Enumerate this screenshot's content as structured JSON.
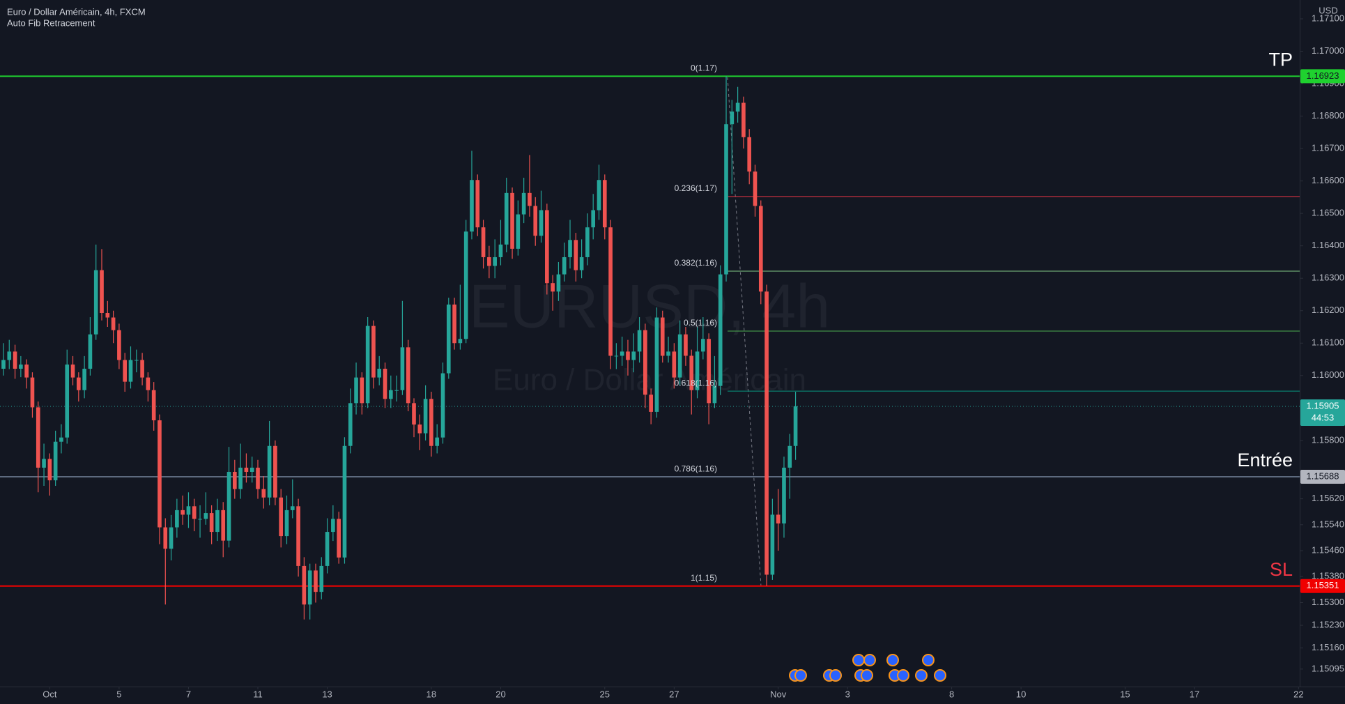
{
  "chart_data": {
    "type": "candlestick",
    "title": "Euro / Dollar Américain, 4h, FXCM",
    "subtitle": "Auto Fib Retracement",
    "currency": "USD",
    "watermark": {
      "symbol": "EURUSD, 4h",
      "name": "Euro / Dollar Américain"
    },
    "up_color": "#26a69a",
    "down_color": "#ef5350",
    "ylim": [
      1.15041,
      1.17158
    ],
    "xlim": [
      -8.6,
      216.2
    ],
    "yticks": [
      {
        "value": 1.171,
        "label": "1.17100"
      },
      {
        "value": 1.17,
        "label": "1.17000"
      },
      {
        "value": 1.169,
        "label": "1.16900"
      },
      {
        "value": 1.168,
        "label": "1.16800"
      },
      {
        "value": 1.167,
        "label": "1.16700"
      },
      {
        "value": 1.166,
        "label": "1.16600"
      },
      {
        "value": 1.165,
        "label": "1.16500"
      },
      {
        "value": 1.164,
        "label": "1.16400"
      },
      {
        "value": 1.163,
        "label": "1.16300"
      },
      {
        "value": 1.162,
        "label": "1.16200"
      },
      {
        "value": 1.161,
        "label": "1.16100"
      },
      {
        "value": 1.16,
        "label": "1.16000"
      },
      {
        "value": 1.158,
        "label": "1.15800"
      },
      {
        "value": 1.1562,
        "label": "1.15620"
      },
      {
        "value": 1.1554,
        "label": "1.15540"
      },
      {
        "value": 1.1546,
        "label": "1.15460"
      },
      {
        "value": 1.1538,
        "label": "1.15380"
      },
      {
        "value": 1.153,
        "label": "1.15300"
      },
      {
        "value": 1.1523,
        "label": "1.15230"
      },
      {
        "value": 1.1516,
        "label": "1.15160"
      },
      {
        "value": 1.15095,
        "label": "1.15095"
      }
    ],
    "xticks": [
      {
        "value": 0,
        "label": "Oct"
      },
      {
        "value": 12,
        "label": "5"
      },
      {
        "value": 24,
        "label": "7"
      },
      {
        "value": 36,
        "label": "11"
      },
      {
        "value": 48,
        "label": "13"
      },
      {
        "value": 66,
        "label": "18"
      },
      {
        "value": 78,
        "label": "20"
      },
      {
        "value": 96,
        "label": "25"
      },
      {
        "value": 108,
        "label": "27"
      },
      {
        "value": 126,
        "label": "Nov"
      },
      {
        "value": 138,
        "label": "3"
      },
      {
        "value": 156,
        "label": "8"
      },
      {
        "value": 168,
        "label": "10"
      },
      {
        "value": 186,
        "label": "15"
      },
      {
        "value": 198,
        "label": "17"
      },
      {
        "value": 216,
        "label": "22"
      }
    ],
    "levels": [
      {
        "name": "TP",
        "value": 1.16923,
        "color": "#1fd12f",
        "tag_color": "#1fd12f",
        "tag_text": "#131722",
        "name_color": "#ffffff"
      },
      {
        "name": "Entrée",
        "value": 1.15688,
        "color": "#5d6a7e",
        "tag_color": "#b2b5be",
        "tag_text": "#131722",
        "name_color": "#ffffff"
      },
      {
        "name": "SL",
        "value": 1.15351,
        "color": "#f00000",
        "tag_color": "#f00000",
        "tag_text": "#ffffff",
        "name_color": "#f23645"
      }
    ],
    "current_price": 1.15905,
    "countdown": "44:53",
    "fib_levels": [
      {
        "label": "0(1.17)",
        "value": 1.16923,
        "color": "#787b86"
      },
      {
        "label": "0.236(1.17)",
        "value": 1.16552,
        "color": "#f23645"
      },
      {
        "label": "0.382(1.16)",
        "value": 1.16322,
        "color": "#81c784"
      },
      {
        "label": "0.5(1.16)",
        "value": 1.16137,
        "color": "#4caf50"
      },
      {
        "label": "0.618(1.16)",
        "value": 1.15952,
        "color": "#089981"
      },
      {
        "label": "0.786(1.16)",
        "value": 1.15687,
        "color": "#64b5f6"
      },
      {
        "label": "1(1.15)",
        "value": 1.15351,
        "color": "#787b86"
      }
    ],
    "x": [
      -8,
      -7,
      -6,
      -5,
      -4,
      -3,
      -2,
      -1,
      0,
      1,
      2,
      3,
      4,
      5,
      6,
      7,
      8,
      9,
      10,
      11,
      12,
      13,
      14,
      15,
      16,
      17,
      18,
      19,
      20,
      21,
      22,
      23,
      24,
      25,
      26,
      27,
      28,
      29,
      30,
      31,
      32,
      33,
      34,
      35,
      36,
      37,
      38,
      39,
      40,
      41,
      42,
      43,
      44,
      45,
      46,
      47,
      48,
      49,
      50,
      51,
      52,
      53,
      54,
      55,
      56,
      57,
      58,
      59,
      60,
      61,
      62,
      63,
      64,
      65,
      66,
      67,
      68,
      69,
      70,
      71,
      72,
      73,
      74,
      75,
      76,
      77,
      78,
      79,
      80,
      81,
      82,
      83,
      84,
      85,
      86,
      87,
      88,
      89,
      90,
      91,
      92,
      93,
      94,
      95,
      96,
      97,
      98,
      99,
      100,
      101,
      102,
      103,
      104,
      105,
      106,
      107,
      108,
      109,
      110,
      111,
      112,
      113,
      114,
      115,
      116,
      117,
      118,
      119,
      120,
      121,
      122,
      123,
      124,
      125,
      126,
      127,
      128,
      129
    ],
    "ohlc": [
      [
        1.16021,
        1.161,
        1.16,
        1.16048
      ],
      [
        1.16048,
        1.1611,
        1.1602,
        1.16074
      ],
      [
        1.16074,
        1.16095,
        1.1599,
        1.16021
      ],
      [
        1.16021,
        1.1606,
        1.15995,
        1.16034
      ],
      [
        1.16034,
        1.1605,
        1.1596,
        1.15994
      ],
      [
        1.15994,
        1.1601,
        1.1587,
        1.15902
      ],
      [
        1.15902,
        1.1592,
        1.1564,
        1.15716
      ],
      [
        1.15716,
        1.1579,
        1.1566,
        1.15743
      ],
      [
        1.15743,
        1.1576,
        1.1563,
        1.15677
      ],
      [
        1.15677,
        1.1583,
        1.1566,
        1.15796
      ],
      [
        1.15796,
        1.1585,
        1.1576,
        1.15809
      ],
      [
        1.15809,
        1.1608,
        1.1579,
        1.16034
      ],
      [
        1.16034,
        1.1606,
        1.1597,
        1.15994
      ],
      [
        1.15994,
        1.1601,
        1.1592,
        1.15955
      ],
      [
        1.15955,
        1.1606,
        1.1593,
        1.16021
      ],
      [
        1.16021,
        1.1618,
        1.16,
        1.16127
      ],
      [
        1.16127,
        1.16404,
        1.1611,
        1.16325
      ],
      [
        1.16325,
        1.1639,
        1.1617,
        1.16193
      ],
      [
        1.16193,
        1.1623,
        1.1615,
        1.16179
      ],
      [
        1.16179,
        1.162,
        1.161,
        1.1614
      ],
      [
        1.1614,
        1.1616,
        1.1602,
        1.16048
      ],
      [
        1.16048,
        1.1607,
        1.1595,
        1.15981
      ],
      [
        1.15981,
        1.1609,
        1.1596,
        1.16048
      ],
      [
        1.16048,
        1.1608,
        1.1601,
        1.16048
      ],
      [
        1.16048,
        1.1607,
        1.1597,
        1.15994
      ],
      [
        1.15994,
        1.1601,
        1.1592,
        1.15955
      ],
      [
        1.15955,
        1.1598,
        1.1583,
        1.15862
      ],
      [
        1.15862,
        1.1588,
        1.1548,
        1.15532
      ],
      [
        1.15532,
        1.1556,
        1.15294,
        1.15466
      ],
      [
        1.15466,
        1.1557,
        1.1543,
        1.15532
      ],
      [
        1.15532,
        1.1562,
        1.155,
        1.15585
      ],
      [
        1.15585,
        1.1563,
        1.1554,
        1.15571
      ],
      [
        1.15571,
        1.1564,
        1.1553,
        1.15597
      ],
      [
        1.15597,
        1.1562,
        1.1552,
        1.15558
      ],
      [
        1.15558,
        1.156,
        1.155,
        1.15558
      ],
      [
        1.15558,
        1.1564,
        1.1554,
        1.15576
      ],
      [
        1.15576,
        1.156,
        1.1548,
        1.15518
      ],
      [
        1.15518,
        1.1562,
        1.1549,
        1.15585
      ],
      [
        1.15585,
        1.1561,
        1.1544,
        1.15491
      ],
      [
        1.15491,
        1.1578,
        1.1547,
        1.15703
      ],
      [
        1.15703,
        1.1574,
        1.1562,
        1.1565
      ],
      [
        1.1565,
        1.1579,
        1.1562,
        1.15716
      ],
      [
        1.15716,
        1.1576,
        1.1567,
        1.15703
      ],
      [
        1.15703,
        1.1575,
        1.1567,
        1.15716
      ],
      [
        1.15716,
        1.1574,
        1.1562,
        1.1565
      ],
      [
        1.1565,
        1.1569,
        1.1559,
        1.15624
      ],
      [
        1.15624,
        1.1586,
        1.156,
        1.15783
      ],
      [
        1.15783,
        1.158,
        1.156,
        1.15624
      ],
      [
        1.15624,
        1.1565,
        1.1547,
        1.15505
      ],
      [
        1.15505,
        1.1563,
        1.1548,
        1.15585
      ],
      [
        1.15585,
        1.1568,
        1.1556,
        1.15597
      ],
      [
        1.15597,
        1.1562,
        1.1538,
        1.15413
      ],
      [
        1.15413,
        1.1544,
        1.15248,
        1.15294
      ],
      [
        1.15294,
        1.1542,
        1.15248,
        1.15399
      ],
      [
        1.15399,
        1.1542,
        1.153,
        1.15333
      ],
      [
        1.15333,
        1.1544,
        1.1531,
        1.15413
      ],
      [
        1.15413,
        1.1556,
        1.1539,
        1.15518
      ],
      [
        1.15518,
        1.156,
        1.1549,
        1.15558
      ],
      [
        1.15558,
        1.1558,
        1.1542,
        1.15439
      ],
      [
        1.15439,
        1.1581,
        1.1542,
        1.15783
      ],
      [
        1.15783,
        1.1596,
        1.1576,
        1.15915
      ],
      [
        1.15915,
        1.1604,
        1.1588,
        1.15994
      ],
      [
        1.15994,
        1.1601,
        1.1588,
        1.15915
      ],
      [
        1.15915,
        1.1618,
        1.159,
        1.16153
      ],
      [
        1.16153,
        1.1617,
        1.1596,
        1.15994
      ],
      [
        1.15994,
        1.1606,
        1.1597,
        1.16021
      ],
      [
        1.16021,
        1.1604,
        1.159,
        1.15928
      ],
      [
        1.15928,
        1.16,
        1.159,
        1.15955
      ],
      [
        1.15955,
        1.16,
        1.1592,
        1.15955
      ],
      [
        1.15955,
        1.1623,
        1.1594,
        1.16087
      ],
      [
        1.16087,
        1.1611,
        1.1589,
        1.15915
      ],
      [
        1.15915,
        1.1593,
        1.1581,
        1.15849
      ],
      [
        1.15849,
        1.1588,
        1.1577,
        1.15822
      ],
      [
        1.15822,
        1.1597,
        1.158,
        1.15928
      ],
      [
        1.15928,
        1.1595,
        1.1575,
        1.15783
      ],
      [
        1.15783,
        1.1585,
        1.1576,
        1.15809
      ],
      [
        1.15809,
        1.1604,
        1.1579,
        1.16007
      ],
      [
        1.16007,
        1.1624,
        1.1599,
        1.16219
      ],
      [
        1.16219,
        1.1624,
        1.1608,
        1.161
      ],
      [
        1.161,
        1.1628,
        1.1608,
        1.16113
      ],
      [
        1.16113,
        1.1648,
        1.161,
        1.16444
      ],
      [
        1.16444,
        1.16693,
        1.1642,
        1.16603
      ],
      [
        1.16603,
        1.1662,
        1.1643,
        1.16457
      ],
      [
        1.16457,
        1.1648,
        1.1633,
        1.16365
      ],
      [
        1.16365,
        1.164,
        1.163,
        1.16338
      ],
      [
        1.16338,
        1.1642,
        1.163,
        1.16365
      ],
      [
        1.16365,
        1.1648,
        1.1634,
        1.16404
      ],
      [
        1.16404,
        1.1661,
        1.1638,
        1.16563
      ],
      [
        1.16563,
        1.1658,
        1.1636,
        1.16391
      ],
      [
        1.16391,
        1.1654,
        1.1637,
        1.16497
      ],
      [
        1.16497,
        1.1661,
        1.1647,
        1.16563
      ],
      [
        1.16563,
        1.1668,
        1.1649,
        1.16523
      ],
      [
        1.16523,
        1.1655,
        1.164,
        1.16431
      ],
      [
        1.16431,
        1.1657,
        1.1641,
        1.1651
      ],
      [
        1.1651,
        1.1653,
        1.1625,
        1.16285
      ],
      [
        1.16285,
        1.1631,
        1.162,
        1.16259
      ],
      [
        1.16259,
        1.1635,
        1.1623,
        1.16312
      ],
      [
        1.16312,
        1.1641,
        1.1629,
        1.16365
      ],
      [
        1.16365,
        1.1648,
        1.1633,
        1.16418
      ],
      [
        1.16418,
        1.1644,
        1.1629,
        1.16325
      ],
      [
        1.16325,
        1.1642,
        1.163,
        1.16365
      ],
      [
        1.16365,
        1.165,
        1.1634,
        1.16457
      ],
      [
        1.16457,
        1.1656,
        1.1642,
        1.1651
      ],
      [
        1.1651,
        1.1665,
        1.1648,
        1.16603
      ],
      [
        1.16603,
        1.1662,
        1.1642,
        1.16457
      ],
      [
        1.16457,
        1.1648,
        1.1602,
        1.16061
      ],
      [
        1.16061,
        1.161,
        1.1602,
        1.16061
      ],
      [
        1.16061,
        1.1612,
        1.1603,
        1.16074
      ],
      [
        1.16074,
        1.1611,
        1.16,
        1.16048
      ],
      [
        1.16048,
        1.1613,
        1.1601,
        1.16074
      ],
      [
        1.16074,
        1.1618,
        1.1604,
        1.1614
      ],
      [
        1.1614,
        1.1616,
        1.159,
        1.15941
      ],
      [
        1.15941,
        1.1596,
        1.1585,
        1.15888
      ],
      [
        1.15888,
        1.1621,
        1.1587,
        1.16179
      ],
      [
        1.16179,
        1.162,
        1.1604,
        1.16061
      ],
      [
        1.16061,
        1.1612,
        1.1604,
        1.16074
      ],
      [
        1.16074,
        1.161,
        1.1596,
        1.15994
      ],
      [
        1.15994,
        1.1617,
        1.1597,
        1.16127
      ],
      [
        1.16127,
        1.1615,
        1.1603,
        1.16061
      ],
      [
        1.16061,
        1.1608,
        1.1588,
        1.15955
      ],
      [
        1.15955,
        1.1615,
        1.1593,
        1.16074
      ],
      [
        1.16074,
        1.1618,
        1.1605,
        1.16113
      ],
      [
        1.16113,
        1.1613,
        1.1585,
        1.15915
      ],
      [
        1.15915,
        1.1606,
        1.159,
        1.15968
      ],
      [
        1.15968,
        1.1634,
        1.1594,
        1.16312
      ],
      [
        1.16312,
        1.16923,
        1.1629,
        1.16775
      ],
      [
        1.16775,
        1.1685,
        1.1656,
        1.16814
      ],
      [
        1.16814,
        1.1689,
        1.1678,
        1.16841
      ],
      [
        1.16841,
        1.1686,
        1.167,
        1.16735
      ],
      [
        1.16735,
        1.1676,
        1.1659,
        1.16629
      ],
      [
        1.16629,
        1.1665,
        1.1649,
        1.16523
      ],
      [
        1.16523,
        1.1654,
        1.1622,
        1.16259
      ],
      [
        1.16259,
        1.1628,
        1.15351,
        1.15386
      ],
      [
        1.15386,
        1.1562,
        1.1537,
        1.15571
      ],
      [
        1.15571,
        1.1565,
        1.1546,
        1.15544
      ],
      [
        1.15544,
        1.1575,
        1.155,
        1.15716
      ],
      [
        1.15716,
        1.1582,
        1.1562,
        1.15783
      ],
      [
        1.15783,
        1.1595,
        1.1574,
        1.15905
      ]
    ]
  }
}
